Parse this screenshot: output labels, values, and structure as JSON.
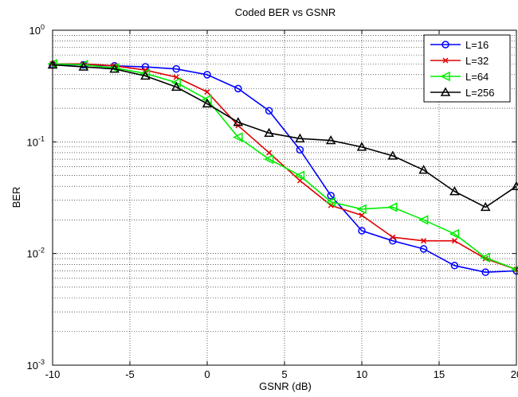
{
  "chart_data": {
    "type": "line",
    "title": "Coded BER vs GSNR",
    "xlabel": "GSNR (dB)",
    "ylabel": "BER",
    "y_scale": "log",
    "xlim": [
      -10,
      20
    ],
    "ylim": [
      0.001,
      1
    ],
    "x_ticks": [
      -10,
      -5,
      0,
      5,
      10,
      15,
      20
    ],
    "x_tick_labels": [
      "-10",
      "-5",
      "0",
      "5",
      "10",
      "15",
      "20"
    ],
    "y_tick_labels": [
      {
        "value": 1,
        "base": "10",
        "exp": "0"
      },
      {
        "value": 0.1,
        "base": "10",
        "exp": "-1"
      },
      {
        "value": 0.01,
        "base": "10",
        "exp": "-2"
      },
      {
        "value": 0.001,
        "base": "10",
        "exp": "-3"
      }
    ],
    "grid": true,
    "legend_position": "top-right",
    "x": [
      -10,
      -8,
      -6,
      -4,
      -2,
      0,
      2,
      4,
      6,
      8,
      10,
      12,
      14,
      16,
      18,
      20
    ],
    "series": [
      {
        "name": "L=16",
        "color": "#0000ff",
        "marker": "circle",
        "values": [
          0.49,
          0.49,
          0.48,
          0.47,
          0.45,
          0.4,
          0.3,
          0.19,
          0.085,
          0.033,
          0.016,
          0.013,
          0.011,
          0.0078,
          0.0068,
          0.007
        ]
      },
      {
        "name": "L=32",
        "color": "#e00000",
        "marker": "x",
        "values": [
          0.5,
          0.5,
          0.48,
          0.44,
          0.38,
          0.28,
          0.14,
          0.08,
          0.045,
          0.027,
          0.022,
          0.014,
          0.013,
          0.013,
          0.009,
          0.0072
        ]
      },
      {
        "name": "L=64",
        "color": "#00ee00",
        "marker": "triangle-left",
        "values": [
          0.5,
          0.49,
          0.46,
          0.41,
          0.34,
          0.24,
          0.11,
          0.07,
          0.05,
          0.029,
          0.025,
          0.026,
          0.02,
          0.015,
          0.0092,
          0.0072
        ]
      },
      {
        "name": "L=256",
        "color": "#000000",
        "marker": "triangle-up",
        "values": [
          0.49,
          0.47,
          0.45,
          0.39,
          0.31,
          0.22,
          0.15,
          0.12,
          0.107,
          0.103,
          0.09,
          0.075,
          0.056,
          0.036,
          0.026,
          0.04
        ]
      }
    ]
  }
}
